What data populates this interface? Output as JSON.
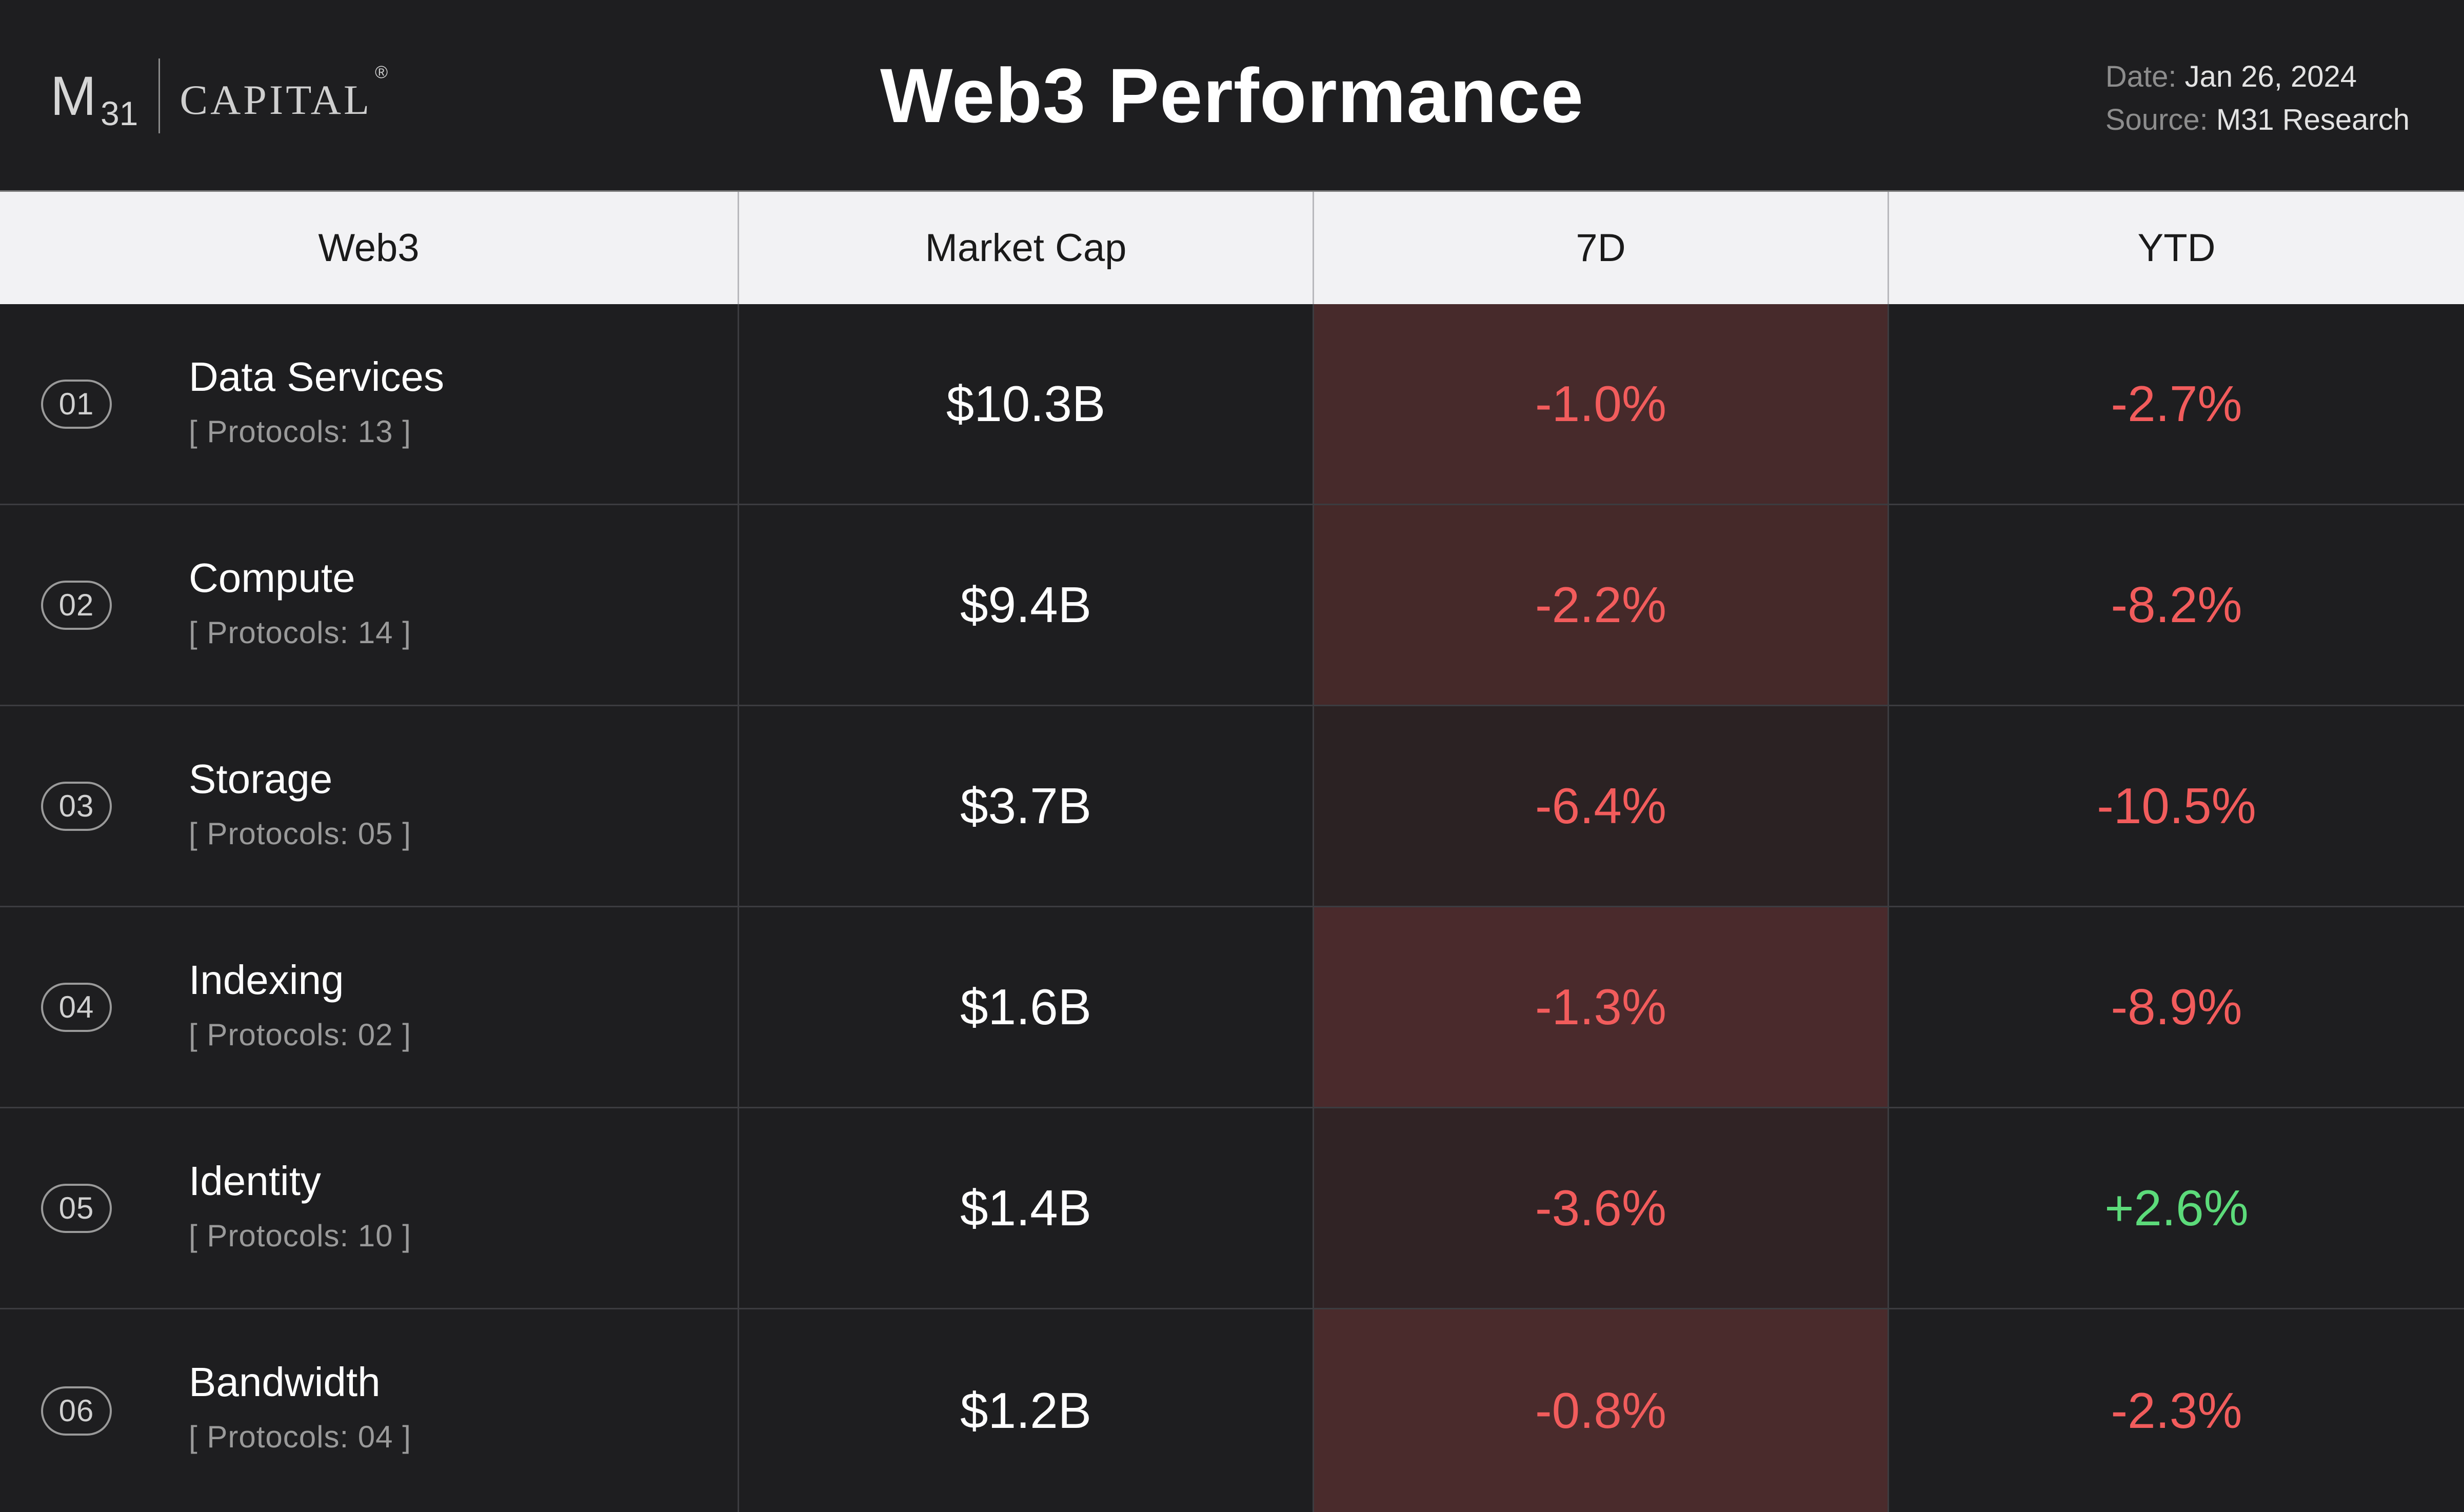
{
  "header": {
    "logo": {
      "letter": "M",
      "subscript": "31",
      "wordmark": "CAPITAL",
      "registered": "®"
    },
    "title": "Web3 Performance",
    "date_label": "Date:",
    "date_value": "Jan 26, 2024",
    "source_label": "Source:",
    "source_value": "M31 Research"
  },
  "table": {
    "columns": [
      "Web3",
      "Market Cap",
      "7D",
      "YTD"
    ],
    "rows": [
      {
        "index": "01",
        "name": "Data Services",
        "protocols": "[ Protocols: 13 ]",
        "market_cap": "$10.3B",
        "d7": "-1.0%",
        "ytd": "-2.7%",
        "d7_bg": "#472a2b",
        "ytd_tone": "neg"
      },
      {
        "index": "02",
        "name": "Compute",
        "protocols": "[ Protocols: 14 ]",
        "market_cap": "$9.4B",
        "d7": "-2.2%",
        "ytd": "-8.2%",
        "d7_bg": "#452929",
        "ytd_tone": "neg"
      },
      {
        "index": "03",
        "name": "Storage",
        "protocols": "[ Protocols: 05 ]",
        "market_cap": "$3.7B",
        "d7": "-6.4%",
        "ytd": "-10.5%",
        "d7_bg": "#2b2223",
        "ytd_tone": "neg"
      },
      {
        "index": "04",
        "name": "Indexing",
        "protocols": "[ Protocols: 02 ]",
        "market_cap": "$1.6B",
        "d7": "-1.3%",
        "ytd": "-8.9%",
        "d7_bg": "#4a2a2c",
        "ytd_tone": "neg"
      },
      {
        "index": "05",
        "name": "Identity",
        "protocols": "[ Protocols: 10 ]",
        "market_cap": "$1.4B",
        "d7": "-3.6%",
        "ytd": "+2.6%",
        "d7_bg": "#302325",
        "ytd_tone": "pos"
      },
      {
        "index": "06",
        "name": "Bandwidth",
        "protocols": "[ Protocols: 04 ]",
        "market_cap": "$1.2B",
        "d7": "-0.8%",
        "ytd": "-2.3%",
        "d7_bg": "#4a2b2c",
        "ytd_tone": "neg"
      }
    ]
  },
  "colors": {
    "background": "#1e1e20",
    "header_row_bg": "#f2f2f4",
    "negative": "#f25c5c",
    "positive": "#5cdb7a"
  }
}
